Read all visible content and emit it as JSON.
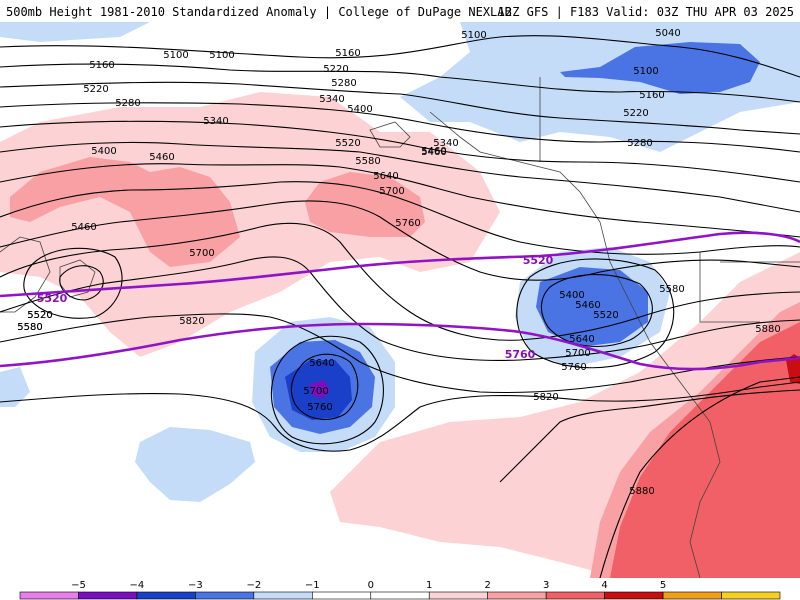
{
  "header": {
    "left": "500mb Height 1981-2010 Standardized Anomaly | College of DuPage NEXLAB",
    "right": "12Z GFS | F183 Valid: 03Z THU APR 03 2025"
  },
  "colors": {
    "anom_neg5": "#d24fd4",
    "anom_neg4": "#7a0fc0",
    "anom_neg3": "#1a3fc8",
    "anom_neg2": "#4a74e4",
    "anom_neg1": "#c4dcf8",
    "anom_pos1": "#fcd2d4",
    "anom_pos2": "#f8a0a4",
    "anom_pos3": "#f06066",
    "anom_pos4": "#c80e12",
    "anom_pos5": "#f0a018",
    "contour": "#000000",
    "highlight_contour": "#9013c8"
  },
  "colorbar": {
    "ticks": [
      "−5",
      "−4",
      "−3",
      "−2",
      "−1",
      "0",
      "1",
      "2",
      "3",
      "4",
      "5"
    ],
    "colors": [
      "#e97ee9",
      "#7a0fc0",
      "#1a3fc8",
      "#4a74e4",
      "#c4dcf8",
      "#ffffff",
      "#ffffff",
      "#fcd2d4",
      "#f8a0a4",
      "#f06066",
      "#c80e12",
      "#f0a018",
      "#f4d020"
    ]
  },
  "contour_labels": [
    {
      "t": "5100"
    },
    {
      "t": "5160"
    },
    {
      "t": "5220"
    },
    {
      "t": "5280"
    },
    {
      "t": "5340"
    },
    {
      "t": "5400"
    },
    {
      "t": "5460"
    },
    {
      "t": "5100"
    },
    {
      "t": "5160"
    },
    {
      "t": "5220"
    },
    {
      "t": "5280"
    },
    {
      "t": "5340"
    },
    {
      "t": "5400"
    },
    {
      "t": "5460"
    },
    {
      "t": "5520"
    },
    {
      "t": "5580"
    },
    {
      "t": "5640"
    },
    {
      "t": "5700"
    },
    {
      "t": "5760"
    },
    {
      "t": "5100"
    },
    {
      "t": "5040"
    },
    {
      "t": "5100"
    },
    {
      "t": "5160"
    },
    {
      "t": "5220"
    },
    {
      "t": "5280"
    },
    {
      "t": "5340"
    },
    {
      "t": "5460"
    },
    {
      "t": "5520"
    },
    {
      "t": "5580"
    },
    {
      "t": "5460"
    },
    {
      "t": "5520"
    },
    {
      "t": "5580"
    },
    {
      "t": "5700"
    },
    {
      "t": "5820"
    },
    {
      "t": "5640"
    },
    {
      "t": "5700"
    },
    {
      "t": "5760"
    },
    {
      "t": "5400"
    },
    {
      "t": "5460"
    },
    {
      "t": "5520"
    },
    {
      "t": "5580"
    },
    {
      "t": "5640"
    },
    {
      "t": "5700"
    },
    {
      "t": "5760"
    },
    {
      "t": "5820"
    },
    {
      "t": "5880"
    },
    {
      "t": "5880"
    }
  ],
  "highlight_labels": [
    {
      "t": "5520"
    },
    {
      "t": "5520"
    },
    {
      "t": "5760"
    }
  ]
}
